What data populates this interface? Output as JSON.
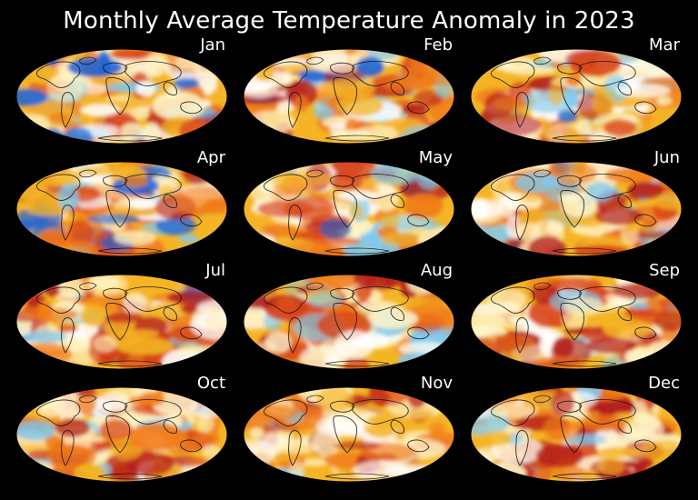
{
  "title": "Monthly Average Temperature Anomaly in 2023",
  "colors": {
    "background": "#000000",
    "base_warm": "#f4b425",
    "strong_warm": "#b31b1b",
    "neutral": "#fff5c8",
    "cold": "#1e64d8"
  },
  "panels": [
    {
      "label": "Jan",
      "warm_bias": 0.0
    },
    {
      "label": "Feb",
      "warm_bias": 0.03
    },
    {
      "label": "Mar",
      "warm_bias": 0.05
    },
    {
      "label": "Apr",
      "warm_bias": 0.01
    },
    {
      "label": "May",
      "warm_bias": 0.02
    },
    {
      "label": "Jun",
      "warm_bias": 0.04
    },
    {
      "label": "Jul",
      "warm_bias": 0.06
    },
    {
      "label": "Aug",
      "warm_bias": 0.08
    },
    {
      "label": "Sep",
      "warm_bias": 0.1
    },
    {
      "label": "Oct",
      "warm_bias": 0.1
    },
    {
      "label": "Nov",
      "warm_bias": 0.12
    },
    {
      "label": "Dec",
      "warm_bias": 0.11
    }
  ]
}
